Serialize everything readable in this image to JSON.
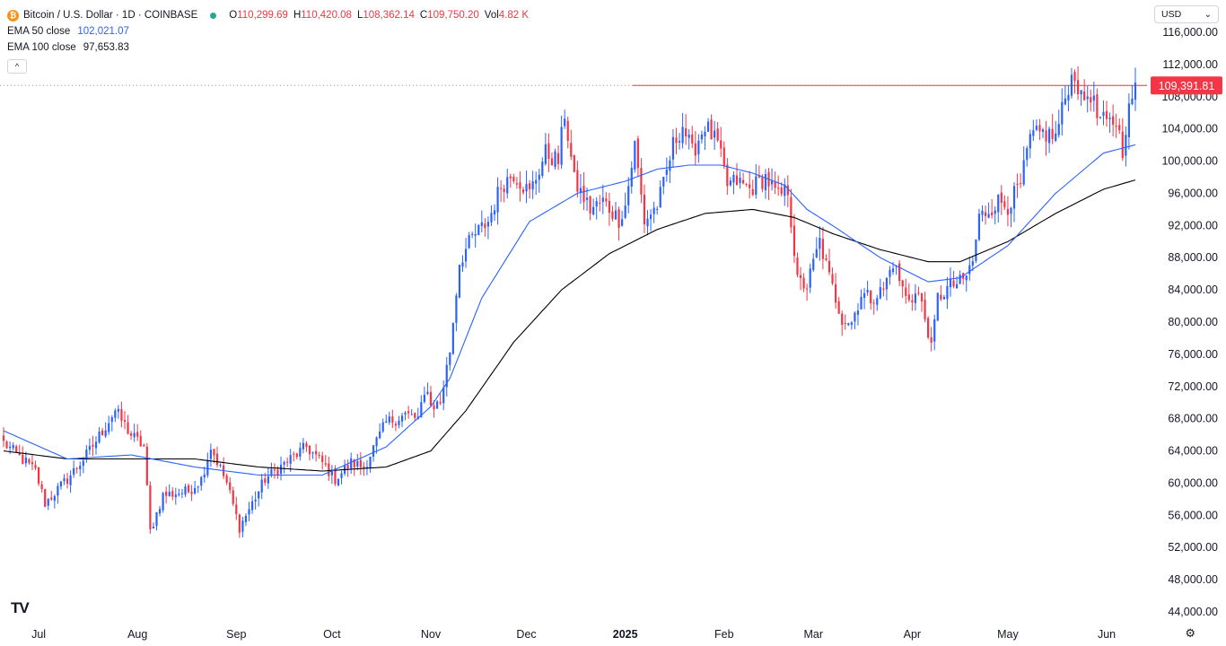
{
  "header": {
    "symbol_title": "Bitcoin / U.S. Dollar · 1D · COINBASE",
    "coin_icon_glyph": "₿",
    "ohlc": [
      {
        "key": "O",
        "value": "110,299.69"
      },
      {
        "key": "H",
        "value": "110,420.08"
      },
      {
        "key": "L",
        "value": "108,362.14"
      },
      {
        "key": "C",
        "value": "109,750.20"
      },
      {
        "key": "Vol",
        "value": "4.82 K"
      }
    ],
    "ema50_label": "EMA 50 close",
    "ema50_value": "102,021.07",
    "ema100_label": "EMA 100 close",
    "ema100_value": "97,653.83",
    "collapse_glyph": "^"
  },
  "currency": {
    "value": "USD",
    "chevron": "⌄"
  },
  "logo": "TV",
  "settings_glyph": "⚙",
  "colors": {
    "up": "#2962ff",
    "down": "#f23645",
    "ema50": "#2962ff",
    "ema100": "#000000",
    "price_line": "#f23645"
  },
  "chart_data": {
    "type": "candlestick",
    "title": "Bitcoin / U.S. Dollar · 1D · COINBASE",
    "ylim": [
      42000,
      118000
    ],
    "y_ticks": [
      "116,000.00",
      "112,000.00",
      "108,000.00",
      "104,000.00",
      "100,000.00",
      "96,000.00",
      "92,000.00",
      "88,000.00",
      "84,000.00",
      "80,000.00",
      "76,000.00",
      "72,000.00",
      "68,000.00",
      "64,000.00",
      "60,000.00",
      "56,000.00",
      "52,000.00",
      "48,000.00",
      "44,000.00"
    ],
    "y_tick_values": [
      116000,
      112000,
      108000,
      104000,
      100000,
      96000,
      92000,
      88000,
      84000,
      80000,
      76000,
      72000,
      68000,
      64000,
      60000,
      56000,
      52000,
      48000,
      44000
    ],
    "x_start_date": "2024-06-20",
    "days": 356,
    "x_labels": [
      {
        "label": "Jul",
        "day": 11
      },
      {
        "label": "Aug",
        "day": 42
      },
      {
        "label": "Sep",
        "day": 73
      },
      {
        "label": "Oct",
        "day": 103
      },
      {
        "label": "Nov",
        "day": 134
      },
      {
        "label": "Dec",
        "day": 164
      },
      {
        "label": "2025",
        "day": 195
      },
      {
        "label": "Feb",
        "day": 226
      },
      {
        "label": "Mar",
        "day": 254
      },
      {
        "label": "Apr",
        "day": 285
      },
      {
        "label": "May",
        "day": 315
      },
      {
        "label": "Jun",
        "day": 346
      }
    ],
    "close_anchors": [
      [
        0,
        65000
      ],
      [
        10,
        61500
      ],
      [
        13,
        57500
      ],
      [
        20,
        60500
      ],
      [
        27,
        64000
      ],
      [
        35,
        69000
      ],
      [
        40,
        66000
      ],
      [
        44,
        64500
      ],
      [
        46,
        54000
      ],
      [
        50,
        58500
      ],
      [
        58,
        59000
      ],
      [
        62,
        60500
      ],
      [
        65,
        64500
      ],
      [
        70,
        60000
      ],
      [
        74,
        54500
      ],
      [
        78,
        57500
      ],
      [
        82,
        60500
      ],
      [
        89,
        62700
      ],
      [
        95,
        64500
      ],
      [
        100,
        62500
      ],
      [
        104,
        60500
      ],
      [
        109,
        62500
      ],
      [
        113,
        62000
      ],
      [
        120,
        67500
      ],
      [
        126,
        68500
      ],
      [
        130,
        68000
      ],
      [
        133,
        72000
      ],
      [
        134,
        69500
      ],
      [
        137,
        70000
      ],
      [
        140,
        76500
      ],
      [
        143,
        87500
      ],
      [
        147,
        90500
      ],
      [
        152,
        92500
      ],
      [
        156,
        97000
      ],
      [
        160,
        98500
      ],
      [
        165,
        96000
      ],
      [
        170,
        101000
      ],
      [
        174,
        100000
      ],
      [
        176,
        106000
      ],
      [
        179,
        97500
      ],
      [
        184,
        94000
      ],
      [
        188,
        95000
      ],
      [
        193,
        92800
      ],
      [
        195,
        94500
      ],
      [
        198,
        102000
      ],
      [
        201,
        92500
      ],
      [
        205,
        94500
      ],
      [
        207,
        97000
      ],
      [
        210,
        102000
      ],
      [
        213,
        104500
      ],
      [
        216,
        101000
      ],
      [
        220,
        104500
      ],
      [
        224,
        102000
      ],
      [
        227,
        97000
      ],
      [
        230,
        97500
      ],
      [
        234,
        96500
      ],
      [
        239,
        98000
      ],
      [
        243,
        95500
      ],
      [
        246,
        96500
      ],
      [
        249,
        85000
      ],
      [
        252,
        84500
      ],
      [
        256,
        90000
      ],
      [
        259,
        85500
      ],
      [
        263,
        80500
      ],
      [
        266,
        80000
      ],
      [
        269,
        83500
      ],
      [
        272,
        83000
      ],
      [
        276,
        84000
      ],
      [
        279,
        87500
      ],
      [
        283,
        83000
      ],
      [
        287,
        83500
      ],
      [
        290,
        79000
      ],
      [
        291,
        76500
      ],
      [
        293,
        83000
      ],
      [
        297,
        84500
      ],
      [
        301,
        85000
      ],
      [
        304,
        87500
      ],
      [
        306,
        93000
      ],
      [
        312,
        95000
      ],
      [
        315,
        94500
      ],
      [
        319,
        97000
      ],
      [
        322,
        102800
      ],
      [
        326,
        103500
      ],
      [
        330,
        103000
      ],
      [
        334,
        109500
      ],
      [
        336,
        111000
      ],
      [
        338,
        107500
      ],
      [
        341,
        108500
      ],
      [
        343,
        105500
      ],
      [
        346,
        104500
      ],
      [
        349,
        105000
      ],
      [
        351,
        101500
      ],
      [
        352,
        104500
      ],
      [
        355,
        109750
      ]
    ],
    "ema50_anchors": [
      [
        0,
        66500
      ],
      [
        20,
        63000
      ],
      [
        40,
        63500
      ],
      [
        60,
        62000
      ],
      [
        80,
        61000
      ],
      [
        100,
        61000
      ],
      [
        120,
        64500
      ],
      [
        134,
        69500
      ],
      [
        140,
        73000
      ],
      [
        150,
        83000
      ],
      [
        165,
        92500
      ],
      [
        180,
        96000
      ],
      [
        195,
        97500
      ],
      [
        205,
        99000
      ],
      [
        215,
        99500
      ],
      [
        225,
        99500
      ],
      [
        235,
        98500
      ],
      [
        245,
        97000
      ],
      [
        252,
        94000
      ],
      [
        260,
        92000
      ],
      [
        275,
        88000
      ],
      [
        290,
        85000
      ],
      [
        300,
        85500
      ],
      [
        315,
        89500
      ],
      [
        330,
        96000
      ],
      [
        345,
        101000
      ],
      [
        355,
        102021
      ]
    ],
    "ema100_anchors": [
      [
        0,
        64000
      ],
      [
        20,
        63000
      ],
      [
        40,
        63000
      ],
      [
        60,
        63000
      ],
      [
        80,
        62000
      ],
      [
        100,
        61500
      ],
      [
        120,
        62000
      ],
      [
        134,
        64000
      ],
      [
        145,
        69000
      ],
      [
        160,
        77500
      ],
      [
        175,
        84000
      ],
      [
        190,
        88500
      ],
      [
        205,
        91500
      ],
      [
        220,
        93500
      ],
      [
        235,
        94000
      ],
      [
        248,
        93000
      ],
      [
        260,
        91000
      ],
      [
        275,
        89000
      ],
      [
        290,
        87500
      ],
      [
        300,
        87500
      ],
      [
        315,
        90000
      ],
      [
        330,
        93500
      ],
      [
        345,
        96500
      ],
      [
        355,
        97654
      ]
    ],
    "horizontal_line": {
      "value": 109391.81,
      "label": "109,391.81"
    }
  }
}
